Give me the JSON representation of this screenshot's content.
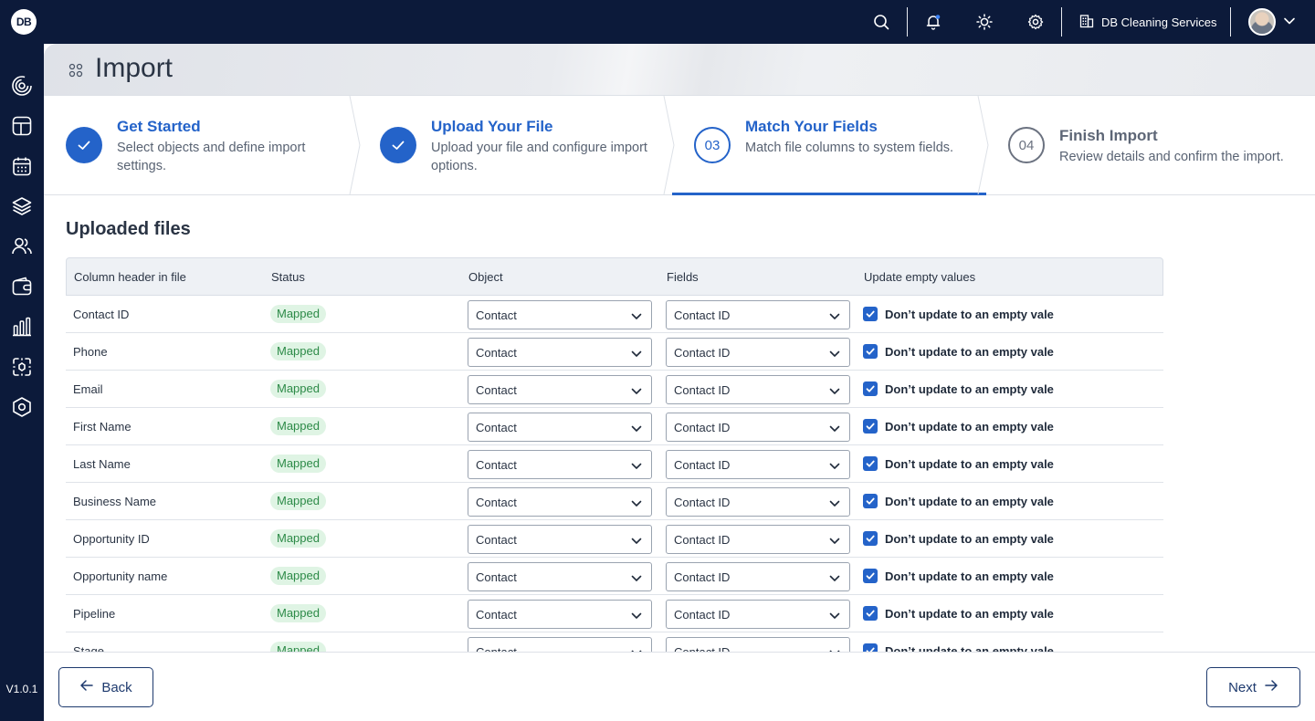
{
  "app": {
    "logo_text": "DB",
    "company_name": "DB Cleaning Services",
    "version": "V1.0.1"
  },
  "topbar": {
    "icons": [
      "search-icon",
      "bell-icon",
      "sun-icon",
      "gear-icon",
      "building-icon"
    ]
  },
  "sidebar": {
    "items": [
      "spinner-icon",
      "layout-icon",
      "calendar-icon",
      "layers-icon",
      "users-icon",
      "wallet-icon",
      "bar-chart-icon",
      "scan-icon",
      "hexagon-settings-icon"
    ]
  },
  "page": {
    "title": "Import"
  },
  "steps": [
    {
      "number": "",
      "title": "Get Started",
      "description": "Select objects and define import settings.",
      "state": "done"
    },
    {
      "number": "",
      "title": "Upload Your File",
      "description": "Upload your file and configure import options.",
      "state": "done"
    },
    {
      "number": "03",
      "title": "Match Your Fields",
      "description": "Match file columns to system fields.",
      "state": "active"
    },
    {
      "number": "04",
      "title": "Finish Import",
      "description": "Review details and confirm the import.",
      "state": "pending"
    }
  ],
  "section": {
    "title": "Uploaded files"
  },
  "table": {
    "headers": [
      "Column header in file",
      "Status",
      "Object",
      "Fields",
      "Update empty values"
    ],
    "rows": [
      {
        "column": "Contact ID",
        "status": "Mapped",
        "object": "Contact",
        "field": "Contact ID",
        "update_label": "Don’t update to an empty vale",
        "checked": true
      },
      {
        "column": "Phone",
        "status": "Mapped",
        "object": "Contact",
        "field": "Contact ID",
        "update_label": "Don’t update to an empty vale",
        "checked": true
      },
      {
        "column": "Email",
        "status": "Mapped",
        "object": "Contact",
        "field": "Contact ID",
        "update_label": "Don’t update to an empty vale",
        "checked": true
      },
      {
        "column": "First Name",
        "status": "Mapped",
        "object": "Contact",
        "field": "Contact ID",
        "update_label": "Don’t update to an empty vale",
        "checked": true
      },
      {
        "column": "Last Name",
        "status": "Mapped",
        "object": "Contact",
        "field": "Contact ID",
        "update_label": "Don’t update to an empty vale",
        "checked": true
      },
      {
        "column": "Business Name",
        "status": "Mapped",
        "object": "Contact",
        "field": "Contact ID",
        "update_label": "Don’t update to an empty vale",
        "checked": true
      },
      {
        "column": "Opportunity ID",
        "status": "Mapped",
        "object": "Contact",
        "field": "Contact ID",
        "update_label": "Don’t update to an empty vale",
        "checked": true
      },
      {
        "column": "Opportunity name",
        "status": "Mapped",
        "object": "Contact",
        "field": "Contact ID",
        "update_label": "Don’t update to an empty vale",
        "checked": true
      },
      {
        "column": "Pipeline",
        "status": "Mapped",
        "object": "Contact",
        "field": "Contact ID",
        "update_label": "Don’t update to an empty vale",
        "checked": true
      },
      {
        "column": "Stage",
        "status": "Mapped",
        "object": "Contact",
        "field": "Contact ID",
        "update_label": "Don’t update to an empty vale",
        "checked": true
      }
    ]
  },
  "footer": {
    "back_label": "Back",
    "next_label": "Next"
  },
  "colors": {
    "navy": "#0c1a3a",
    "accent": "#2463c9",
    "mapped_bg": "#dff4e4",
    "mapped_text": "#2c8a47"
  }
}
